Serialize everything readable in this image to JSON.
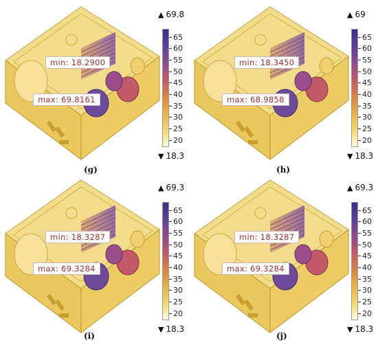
{
  "panels": [
    {
      "caption": "(g)",
      "min": "min: 18.2900",
      "max": "max: 69.8161",
      "top": "69.8",
      "bottom": "18.3"
    },
    {
      "caption": "(h)",
      "min": "min: 18.3450",
      "max": "max: 68.9858",
      "top": "69",
      "bottom": "18.3"
    },
    {
      "caption": "(i)",
      "min": "min: 18.3287",
      "max": "max: 69.3284",
      "top": "69.3",
      "bottom": "18.3"
    },
    {
      "caption": "(j)",
      "min": "min: 18.3287",
      "max": "max: 69.3284",
      "top": "69.3",
      "bottom": "18.3"
    }
  ],
  "ticks": [
    "65",
    "60",
    "55",
    "50",
    "45",
    "40",
    "35",
    "30",
    "25",
    "20"
  ],
  "icons": {
    "up": "▲",
    "down": "▼"
  },
  "colors": {
    "housing": "#f1d06a",
    "hot": "#5b3f99",
    "label": "#a0302a"
  }
}
